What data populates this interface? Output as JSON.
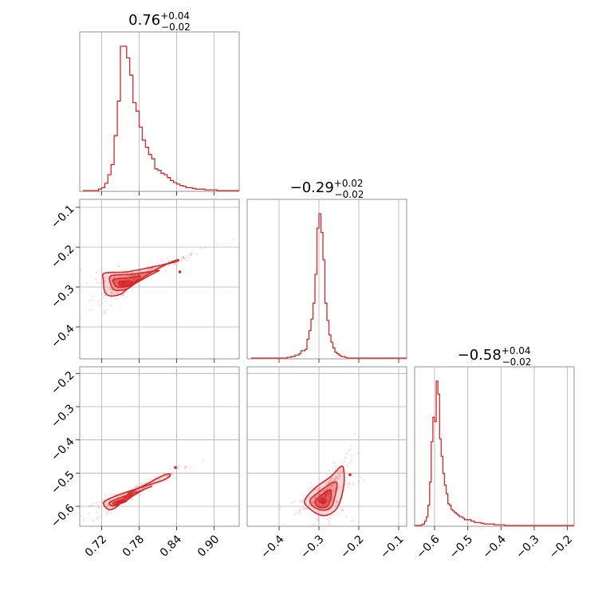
{
  "chart_data": {
    "type": "corner",
    "color": "#d62728",
    "parameters": [
      {
        "id": "p0",
        "range": [
          0.685,
          0.94
        ],
        "ticks": [
          0.72,
          0.78,
          0.84,
          0.9
        ],
        "tick_labels": [
          "0.72",
          "0.78",
          "0.84",
          "0.90"
        ],
        "title": {
          "main": "0.76",
          "plus": "+0.04",
          "minus": "−0.02"
        },
        "histogram": {
          "x": [
            0.69,
            0.695,
            0.7,
            0.705,
            0.71,
            0.715,
            0.72,
            0.725,
            0.73,
            0.735,
            0.74,
            0.745,
            0.75,
            0.755,
            0.76,
            0.765,
            0.77,
            0.775,
            0.78,
            0.785,
            0.79,
            0.795,
            0.8,
            0.805,
            0.81,
            0.815,
            0.82,
            0.825,
            0.83,
            0.835,
            0.84,
            0.845,
            0.85,
            0.855,
            0.86,
            0.865,
            0.87,
            0.875,
            0.88,
            0.885,
            0.89,
            0.895,
            0.9,
            0.905,
            0.91,
            0.915,
            0.92,
            0.925,
            0.93,
            0.935
          ],
          "y": [
            0,
            0,
            0,
            0,
            0,
            0.01,
            0.02,
            0.05,
            0.11,
            0.18,
            0.38,
            0.62,
            1.0,
            1.0,
            0.92,
            0.8,
            0.61,
            0.55,
            0.44,
            0.35,
            0.3,
            0.25,
            0.22,
            0.15,
            0.14,
            0.12,
            0.11,
            0.09,
            0.07,
            0.055,
            0.045,
            0.035,
            0.03,
            0.02,
            0.02,
            0.015,
            0.01,
            0.01,
            0.01,
            0.005,
            0.005,
            0.005,
            0.005,
            0,
            0,
            0,
            0,
            0,
            0,
            0
          ]
        }
      },
      {
        "id": "p1",
        "range": [
          -0.48,
          -0.08
        ],
        "ticks": [
          -0.4,
          -0.3,
          -0.2,
          -0.1
        ],
        "tick_labels": [
          "−0.4",
          "−0.3",
          "−0.2",
          "−0.1"
        ],
        "title": {
          "main": "−0.29",
          "plus": "+0.02",
          "minus": "−0.02"
        },
        "histogram": {
          "x": [
            -0.47,
            -0.46,
            -0.45,
            -0.44,
            -0.43,
            -0.42,
            -0.41,
            -0.4,
            -0.39,
            -0.38,
            -0.37,
            -0.36,
            -0.35,
            -0.345,
            -0.34,
            -0.335,
            -0.33,
            -0.325,
            -0.32,
            -0.315,
            -0.31,
            -0.305,
            -0.3,
            -0.295,
            -0.29,
            -0.285,
            -0.28,
            -0.275,
            -0.27,
            -0.265,
            -0.26,
            -0.255,
            -0.25,
            -0.245,
            -0.24,
            -0.235,
            -0.23,
            -0.22,
            -0.21,
            -0.2,
            -0.19,
            -0.18,
            -0.17,
            -0.16,
            -0.15,
            -0.14,
            -0.13,
            -0.12,
            -0.11,
            -0.1
          ],
          "y": [
            0,
            0,
            0,
            0,
            0,
            0,
            0,
            0,
            0,
            0.005,
            0.01,
            0.02,
            0.03,
            0.05,
            0.05,
            0.06,
            0.13,
            0.19,
            0.27,
            0.38,
            0.58,
            0.9,
            1.0,
            0.87,
            0.68,
            0.38,
            0.26,
            0.16,
            0.11,
            0.07,
            0.04,
            0.03,
            0.02,
            0.01,
            0.01,
            0.005,
            0,
            0,
            0,
            0,
            0,
            0,
            0,
            0,
            0,
            0,
            0,
            0,
            0,
            0
          ]
        }
      },
      {
        "id": "p2",
        "range": [
          -0.66,
          -0.18
        ],
        "ticks": [
          -0.6,
          -0.5,
          -0.4,
          -0.3,
          -0.2
        ],
        "tick_labels": [
          "−0.6",
          "−0.5",
          "−0.4",
          "−0.3",
          "−0.2"
        ],
        "title": {
          "main": "−0.58",
          "plus": "+0.04",
          "minus": "−0.02"
        },
        "histogram": {
          "x": [
            -0.66,
            -0.65,
            -0.64,
            -0.635,
            -0.63,
            -0.625,
            -0.62,
            -0.615,
            -0.61,
            -0.605,
            -0.6,
            -0.595,
            -0.59,
            -0.585,
            -0.58,
            -0.575,
            -0.57,
            -0.565,
            -0.56,
            -0.555,
            -0.55,
            -0.545,
            -0.54,
            -0.535,
            -0.53,
            -0.525,
            -0.52,
            -0.515,
            -0.51,
            -0.5,
            -0.49,
            -0.48,
            -0.47,
            -0.46,
            -0.45,
            -0.44,
            -0.43,
            -0.42,
            -0.41,
            -0.4,
            -0.39,
            -0.38,
            -0.36,
            -0.34,
            -0.32,
            -0.3,
            -0.28,
            -0.26,
            -0.24,
            -0.22
          ],
          "y": [
            0,
            0,
            0.005,
            0.01,
            0.03,
            0.06,
            0.14,
            0.3,
            0.58,
            0.75,
            0.72,
            1.0,
            0.91,
            0.6,
            0.48,
            0.36,
            0.28,
            0.22,
            0.15,
            0.14,
            0.11,
            0.1,
            0.09,
            0.08,
            0.07,
            0.06,
            0.06,
            0.05,
            0.04,
            0.04,
            0.03,
            0.02,
            0.02,
            0.015,
            0.01,
            0.01,
            0.01,
            0.005,
            0.005,
            0.005,
            0,
            0,
            0,
            0,
            0,
            0,
            0,
            0,
            0,
            0
          ]
        }
      }
    ],
    "pairs": [
      {
        "x_param": 0,
        "y_param": 1,
        "mode": [
          0.755,
          -0.29
        ],
        "contours": [
          [
            [
              0.725,
              -0.265
            ],
            [
              0.76,
              -0.262
            ],
            [
              0.8,
              -0.25
            ],
            [
              0.838,
              -0.237
            ],
            [
              0.843,
              -0.232
            ],
            [
              0.835,
              -0.235
            ],
            [
              0.8,
              -0.262
            ],
            [
              0.765,
              -0.3
            ],
            [
              0.75,
              -0.318
            ],
            [
              0.733,
              -0.322
            ],
            [
              0.725,
              -0.312
            ],
            [
              0.723,
              -0.285
            ]
          ],
          [
            [
              0.735,
              -0.272
            ],
            [
              0.765,
              -0.268
            ],
            [
              0.795,
              -0.262
            ],
            [
              0.812,
              -0.258
            ],
            [
              0.8,
              -0.268
            ],
            [
              0.775,
              -0.29
            ],
            [
              0.76,
              -0.305
            ],
            [
              0.742,
              -0.308
            ],
            [
              0.735,
              -0.295
            ]
          ],
          [
            [
              0.74,
              -0.28
            ],
            [
              0.765,
              -0.277
            ],
            [
              0.782,
              -0.272
            ],
            [
              0.775,
              -0.285
            ],
            [
              0.762,
              -0.298
            ],
            [
              0.746,
              -0.3
            ],
            [
              0.74,
              -0.292
            ]
          ],
          [
            [
              0.748,
              -0.287
            ],
            [
              0.765,
              -0.285
            ],
            [
              0.77,
              -0.29
            ],
            [
              0.76,
              -0.296
            ],
            [
              0.75,
              -0.296
            ]
          ]
        ],
        "outliers": [
          [
            0.845,
            -0.262
          ]
        ]
      },
      {
        "x_param": 0,
        "y_param": 2,
        "mode": [
          0.748,
          -0.585
        ],
        "contours": [
          [
            [
              0.725,
              -0.585
            ],
            [
              0.748,
              -0.565
            ],
            [
              0.78,
              -0.545
            ],
            [
              0.82,
              -0.52
            ],
            [
              0.83,
              -0.505
            ],
            [
              0.82,
              -0.506
            ],
            [
              0.79,
              -0.535
            ],
            [
              0.765,
              -0.56
            ],
            [
              0.745,
              -0.6
            ],
            [
              0.733,
              -0.61
            ],
            [
              0.725,
              -0.6
            ]
          ],
          [
            [
              0.733,
              -0.588
            ],
            [
              0.75,
              -0.574
            ],
            [
              0.78,
              -0.555
            ],
            [
              0.8,
              -0.54
            ],
            [
              0.785,
              -0.552
            ],
            [
              0.76,
              -0.58
            ],
            [
              0.745,
              -0.596
            ],
            [
              0.735,
              -0.597
            ]
          ],
          [
            [
              0.738,
              -0.59
            ],
            [
              0.752,
              -0.58
            ],
            [
              0.77,
              -0.566
            ],
            [
              0.76,
              -0.582
            ],
            [
              0.745,
              -0.594
            ]
          ],
          [
            [
              0.743,
              -0.589
            ],
            [
              0.752,
              -0.584
            ],
            [
              0.76,
              -0.584
            ],
            [
              0.751,
              -0.591
            ]
          ]
        ],
        "outliers": [
          [
            0.838,
            -0.483
          ]
        ]
      },
      {
        "x_param": 1,
        "y_param": 2,
        "mode": [
          -0.29,
          -0.585
        ],
        "contours": [
          [
            [
              -0.335,
              -0.58
            ],
            [
              -0.31,
              -0.545
            ],
            [
              -0.27,
              -0.51
            ],
            [
              -0.245,
              -0.48
            ],
            [
              -0.238,
              -0.49
            ],
            [
              -0.238,
              -0.54
            ],
            [
              -0.252,
              -0.6
            ],
            [
              -0.275,
              -0.625
            ],
            [
              -0.3,
              -0.625
            ],
            [
              -0.33,
              -0.6
            ]
          ],
          [
            [
              -0.322,
              -0.58
            ],
            [
              -0.298,
              -0.555
            ],
            [
              -0.268,
              -0.53
            ],
            [
              -0.255,
              -0.53
            ],
            [
              -0.258,
              -0.56
            ],
            [
              -0.268,
              -0.6
            ],
            [
              -0.29,
              -0.612
            ],
            [
              -0.315,
              -0.6
            ]
          ],
          [
            [
              -0.31,
              -0.585
            ],
            [
              -0.292,
              -0.565
            ],
            [
              -0.272,
              -0.55
            ],
            [
              -0.27,
              -0.575
            ],
            [
              -0.28,
              -0.6
            ],
            [
              -0.3,
              -0.603
            ]
          ],
          [
            [
              -0.3,
              -0.582
            ],
            [
              -0.288,
              -0.575
            ],
            [
              -0.282,
              -0.585
            ],
            [
              -0.29,
              -0.592
            ]
          ]
        ],
        "outliers": [
          [
            -0.222,
            -0.505
          ]
        ]
      }
    ]
  }
}
